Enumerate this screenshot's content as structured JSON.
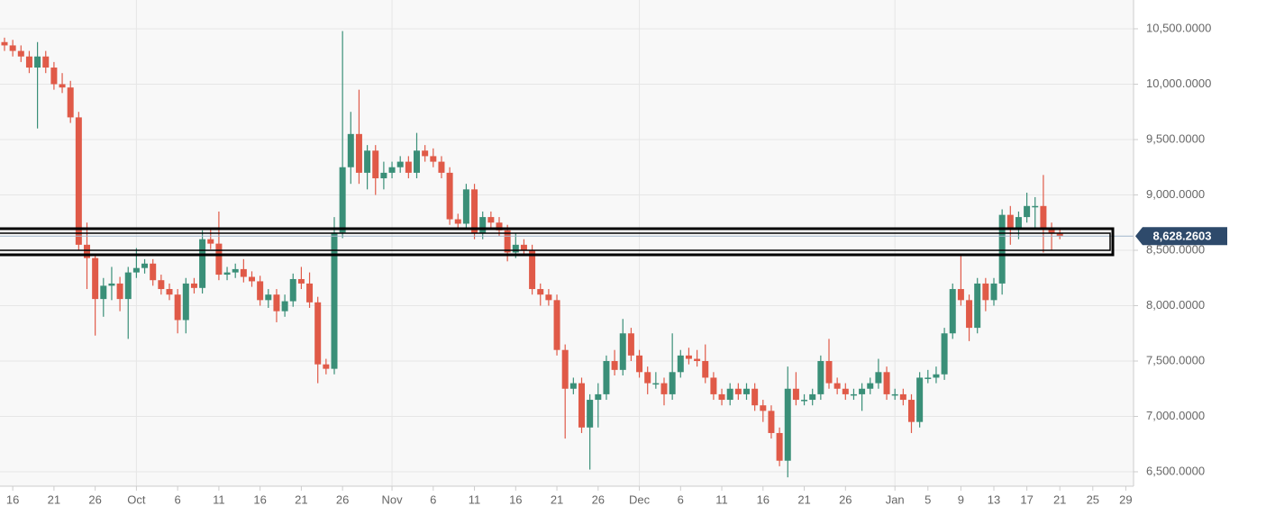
{
  "chart_data": {
    "type": "candlestick",
    "categories": [
      "Sep 15",
      "Sep 16",
      "Sep 17",
      "Sep 18",
      "Sep 19",
      "Sep 20",
      "Sep 21",
      "Sep 22",
      "Sep 23",
      "Sep 24",
      "Sep 25",
      "Sep 26",
      "Sep 27",
      "Sep 28",
      "Sep 29",
      "Sep 30",
      "Oct 1",
      "Oct 2",
      "Oct 3",
      "Oct 4",
      "Oct 5",
      "Oct 6",
      "Oct 7",
      "Oct 8",
      "Oct 9",
      "Oct 10",
      "Oct 11",
      "Oct 12",
      "Oct 13",
      "Oct 14",
      "Oct 15",
      "Oct 16",
      "Oct 17",
      "Oct 18",
      "Oct 19",
      "Oct 20",
      "Oct 21",
      "Oct 22",
      "Oct 23",
      "Oct 24",
      "Oct 25",
      "Oct 26",
      "Oct 27",
      "Oct 28",
      "Oct 29",
      "Oct 30",
      "Oct 31",
      "Nov 1",
      "Nov 2",
      "Nov 3",
      "Nov 4",
      "Nov 5",
      "Nov 6",
      "Nov 7",
      "Nov 8",
      "Nov 9",
      "Nov 10",
      "Nov 11",
      "Nov 12",
      "Nov 13",
      "Nov 14",
      "Nov 15",
      "Nov 16",
      "Nov 17",
      "Nov 18",
      "Nov 19",
      "Nov 20",
      "Nov 21",
      "Nov 22",
      "Nov 23",
      "Nov 24",
      "Nov 25",
      "Nov 26",
      "Nov 27",
      "Nov 28",
      "Nov 29",
      "Nov 30",
      "Dec 1",
      "Dec 2",
      "Dec 3",
      "Dec 4",
      "Dec 5",
      "Dec 6",
      "Dec 7",
      "Dec 8",
      "Dec 9",
      "Dec 10",
      "Dec 11",
      "Dec 12",
      "Dec 13",
      "Dec 14",
      "Dec 15",
      "Dec 16",
      "Dec 17",
      "Dec 18",
      "Dec 19",
      "Dec 20",
      "Dec 21",
      "Dec 22",
      "Dec 23",
      "Dec 24",
      "Dec 25",
      "Dec 26",
      "Dec 27",
      "Dec 28",
      "Dec 29",
      "Dec 30",
      "Dec 31",
      "Jan 1",
      "Jan 2",
      "Jan 3",
      "Jan 4",
      "Jan 5",
      "Jan 6",
      "Jan 7",
      "Jan 8",
      "Jan 9",
      "Jan 10",
      "Jan 11",
      "Jan 12",
      "Jan 13",
      "Jan 14",
      "Jan 15",
      "Jan 16",
      "Jan 17",
      "Jan 18",
      "Jan 19",
      "Jan 20",
      "Jan 21",
      "Jan 22",
      "Jan 23",
      "Jan 24",
      "Jan 25",
      "Jan 26",
      "Jan 27",
      "Jan 28",
      "Jan 29"
    ],
    "open": [
      10380,
      10350,
      10300,
      10250,
      10150,
      10250,
      10150,
      10000,
      9970,
      9700,
      8550,
      8430,
      8060,
      8180,
      8200,
      8060,
      8300,
      8340,
      8380,
      8230,
      8150,
      8100,
      7870,
      8200,
      8160,
      8600,
      8560,
      8280,
      8300,
      8330,
      8260,
      8220,
      8050,
      8100,
      7950,
      8040,
      8240,
      8200,
      8030,
      7470,
      7430,
      8660,
      9250,
      9550,
      9200,
      9400,
      9150,
      9200,
      9250,
      9300,
      9200,
      9400,
      9350,
      9300,
      9200,
      8780,
      8740,
      9050,
      8650,
      8800,
      8750,
      8680,
      8480,
      8550,
      8500,
      8150,
      8100,
      8050,
      7600,
      7250,
      7300,
      6900,
      7150,
      7200,
      7500,
      7420,
      7750,
      7550,
      7400,
      7300,
      7300,
      7200,
      7400,
      7550,
      7520,
      7500,
      7350,
      7200,
      7150,
      7250,
      7200,
      7250,
      7100,
      7050,
      6850,
      6600,
      7250,
      7150,
      7150,
      7200,
      7500,
      7300,
      7250,
      7200,
      7200,
      7250,
      7300,
      7400,
      7200,
      7200,
      7150,
      6950,
      7350,
      7350,
      7380,
      7750,
      8150,
      8050,
      7800,
      8200,
      8050,
      8200,
      8820,
      8700,
      8800,
      8900,
      8900,
      8700,
      8650,
      null,
      null,
      null,
      null,
      null,
      null,
      null,
      null
    ],
    "high": [
      10420,
      10400,
      10350,
      10300,
      10380,
      10300,
      10200,
      10100,
      10030,
      9750,
      8750,
      8450,
      8250,
      8350,
      8260,
      8350,
      8520,
      8420,
      8420,
      8280,
      8200,
      8150,
      8250,
      8250,
      8680,
      8700,
      8850,
      8350,
      8380,
      8420,
      8310,
      8270,
      8150,
      8150,
      8100,
      8290,
      8350,
      8300,
      8080,
      7520,
      8800,
      10480,
      9750,
      9950,
      9450,
      9450,
      9300,
      9300,
      9350,
      9350,
      9560,
      9450,
      9420,
      9350,
      9250,
      8830,
      9100,
      9100,
      8850,
      8850,
      8800,
      8730,
      8650,
      8600,
      8550,
      8200,
      8150,
      8100,
      7650,
      7350,
      7350,
      7200,
      7300,
      7550,
      7600,
      7880,
      7800,
      7600,
      7450,
      7400,
      7350,
      7750,
      7600,
      7620,
      7600,
      7650,
      7400,
      7250,
      7300,
      7300,
      7300,
      7300,
      7150,
      7100,
      6900,
      7450,
      7400,
      7200,
      7250,
      7550,
      7700,
      7350,
      7300,
      7250,
      7300,
      7350,
      7520,
      7450,
      7250,
      7250,
      7200,
      7400,
      7420,
      7450,
      7800,
      8200,
      8450,
      8100,
      8250,
      8250,
      8250,
      8870,
      8900,
      8850,
      9020,
      8980,
      9180,
      8750,
      8700,
      null,
      null,
      null,
      null,
      null,
      null,
      null,
      null
    ],
    "low": [
      10300,
      10250,
      10200,
      10100,
      9600,
      10100,
      9950,
      9920,
      9650,
      8500,
      8150,
      7730,
      7900,
      8050,
      7950,
      7700,
      8250,
      8290,
      8180,
      8100,
      8050,
      7750,
      7750,
      8110,
      8110,
      8510,
      8230,
      8230,
      8250,
      8210,
      8170,
      8000,
      7980,
      7850,
      7900,
      7990,
      8150,
      7980,
      7300,
      7380,
      7380,
      8610,
      9100,
      9100,
      9050,
      9000,
      9050,
      9150,
      9200,
      9150,
      9150,
      9300,
      9250,
      9150,
      8730,
      8690,
      8690,
      8600,
      8600,
      8700,
      8630,
      8400,
      8430,
      8450,
      8100,
      8000,
      8000,
      7550,
      6800,
      7200,
      6850,
      6520,
      6900,
      7150,
      7370,
      7370,
      7500,
      7350,
      7200,
      7250,
      7100,
      7150,
      7350,
      7470,
      7450,
      7300,
      7150,
      7100,
      7100,
      7150,
      7150,
      7050,
      6950,
      6800,
      6550,
      6450,
      7100,
      7100,
      7100,
      7150,
      7250,
      7200,
      7150,
      7150,
      7050,
      7200,
      7250,
      7150,
      7150,
      7100,
      6850,
      6900,
      7300,
      7300,
      7330,
      7700,
      8000,
      7680,
      7750,
      7950,
      8000,
      8100,
      8550,
      8600,
      8750,
      8700,
      8480,
      8500,
      8600,
      null,
      null,
      null,
      null,
      null,
      null,
      null,
      null
    ],
    "close": [
      10350,
      10300,
      10250,
      10150,
      10250,
      10150,
      10000,
      9970,
      9700,
      8550,
      8430,
      8060,
      8180,
      8200,
      8060,
      8300,
      8340,
      8380,
      8230,
      8150,
      8100,
      7870,
      8200,
      8160,
      8600,
      8560,
      8280,
      8300,
      8330,
      8260,
      8220,
      8050,
      8100,
      7950,
      8040,
      8240,
      8200,
      8030,
      7470,
      7430,
      8660,
      9250,
      9550,
      9200,
      9400,
      9150,
      9200,
      9250,
      9300,
      9200,
      9400,
      9350,
      9300,
      9200,
      8780,
      8740,
      9050,
      8650,
      8800,
      8750,
      8680,
      8480,
      8550,
      8500,
      8150,
      8100,
      8050,
      7600,
      7250,
      7300,
      6900,
      7150,
      7200,
      7500,
      7420,
      7750,
      7550,
      7400,
      7300,
      7300,
      7200,
      7400,
      7550,
      7520,
      7500,
      7350,
      7200,
      7150,
      7250,
      7200,
      7250,
      7100,
      7050,
      6850,
      6600,
      7250,
      7150,
      7150,
      7200,
      7500,
      7300,
      7250,
      7200,
      7200,
      7250,
      7300,
      7400,
      7200,
      7200,
      7150,
      6950,
      7350,
      7350,
      7380,
      7750,
      8150,
      8050,
      7800,
      8200,
      8050,
      8200,
      8820,
      8700,
      8800,
      8900,
      8900,
      8700,
      8650,
      8628.2603,
      null,
      null,
      null,
      null,
      null,
      null,
      null,
      null
    ],
    "up_color": "#3a8f78",
    "down_color": "#e05a48",
    "ylim": [
      6370,
      10760
    ],
    "yticks": [
      {
        "value": 6500,
        "label": "6,500.0000"
      },
      {
        "value": 7000,
        "label": "7,000.0000"
      },
      {
        "value": 7500,
        "label": "7,500.0000"
      },
      {
        "value": 8000,
        "label": "8,000.0000"
      },
      {
        "value": 8500,
        "label": "8,500.0000"
      },
      {
        "value": 9000,
        "label": "9,000.0000"
      },
      {
        "value": 9500,
        "label": "9,500.0000"
      },
      {
        "value": 10000,
        "label": "10,000.0000"
      },
      {
        "value": 10500,
        "label": "10,500.0000"
      }
    ],
    "xticks": [
      {
        "value": "Sep 16",
        "label": "16"
      },
      {
        "value": "Sep 21",
        "label": "21"
      },
      {
        "value": "Sep 26",
        "label": "26"
      },
      {
        "value": "Oct 1",
        "label": "Oct"
      },
      {
        "value": "Oct 6",
        "label": "6"
      },
      {
        "value": "Oct 11",
        "label": "11"
      },
      {
        "value": "Oct 16",
        "label": "16"
      },
      {
        "value": "Oct 21",
        "label": "21"
      },
      {
        "value": "Oct 26",
        "label": "26"
      },
      {
        "value": "Nov 1",
        "label": "Nov"
      },
      {
        "value": "Nov 6",
        "label": "6"
      },
      {
        "value": "Nov 11",
        "label": "11"
      },
      {
        "value": "Nov 16",
        "label": "16"
      },
      {
        "value": "Nov 21",
        "label": "21"
      },
      {
        "value": "Nov 26",
        "label": "26"
      },
      {
        "value": "Dec 1",
        "label": "Dec"
      },
      {
        "value": "Dec 6",
        "label": "6"
      },
      {
        "value": "Dec 11",
        "label": "11"
      },
      {
        "value": "Dec 16",
        "label": "16"
      },
      {
        "value": "Dec 21",
        "label": "21"
      },
      {
        "value": "Dec 26",
        "label": "26"
      },
      {
        "value": "Jan 1",
        "label": "Jan"
      },
      {
        "value": "Jan 5",
        "label": "5"
      },
      {
        "value": "Jan 9",
        "label": "9"
      },
      {
        "value": "Jan 13",
        "label": "13"
      },
      {
        "value": "Jan 17",
        "label": "17"
      },
      {
        "value": "Jan 21",
        "label": "21"
      },
      {
        "value": "Jan 25",
        "label": "25"
      },
      {
        "value": "Jan 29",
        "label": "29"
      }
    ],
    "last_price": {
      "value": 8628.2603,
      "label": "8,628.2603"
    },
    "grid": true
  }
}
